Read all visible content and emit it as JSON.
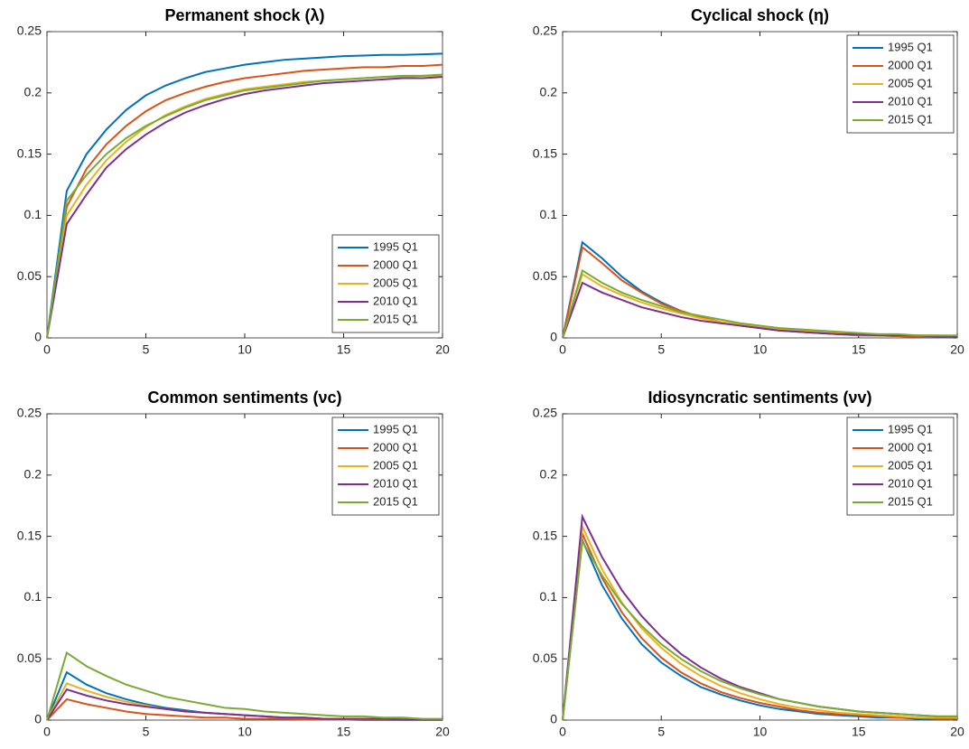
{
  "chart_data": [
    {
      "type": "line",
      "title": "Permanent shock (λ)",
      "x": [
        0,
        1,
        2,
        3,
        4,
        5,
        6,
        7,
        8,
        9,
        10,
        11,
        12,
        13,
        14,
        15,
        16,
        17,
        18,
        19,
        20
      ],
      "xlim": [
        0,
        20
      ],
      "xticks": [
        0,
        5,
        10,
        15,
        20
      ],
      "ylim": [
        0,
        0.25
      ],
      "yticks": [
        0,
        0.05,
        0.1,
        0.15,
        0.2,
        0.25
      ],
      "legend": "lower right",
      "series": [
        {
          "name": "1995 Q1",
          "color": "#0072BD",
          "values": [
            0,
            0.12,
            0.15,
            0.17,
            0.186,
            0.198,
            0.206,
            0.212,
            0.217,
            0.22,
            0.223,
            0.225,
            0.227,
            0.228,
            0.229,
            0.23,
            0.2305,
            0.231,
            0.231,
            0.2315,
            0.232
          ]
        },
        {
          "name": "2000 Q1",
          "color": "#D95319",
          "values": [
            0,
            0.107,
            0.138,
            0.158,
            0.173,
            0.185,
            0.194,
            0.2,
            0.205,
            0.209,
            0.212,
            0.214,
            0.216,
            0.218,
            0.219,
            0.22,
            0.221,
            0.221,
            0.222,
            0.222,
            0.223
          ]
        },
        {
          "name": "2005 Q1",
          "color": "#EDB120",
          "values": [
            0,
            0.1,
            0.125,
            0.145,
            0.16,
            0.172,
            0.182,
            0.189,
            0.195,
            0.199,
            0.203,
            0.205,
            0.207,
            0.209,
            0.21,
            0.211,
            0.212,
            0.213,
            0.213,
            0.214,
            0.214
          ]
        },
        {
          "name": "2010 Q1",
          "color": "#7E2F8E",
          "values": [
            0,
            0.093,
            0.117,
            0.139,
            0.154,
            0.166,
            0.176,
            0.184,
            0.19,
            0.195,
            0.199,
            0.202,
            0.204,
            0.206,
            0.208,
            0.209,
            0.21,
            0.211,
            0.212,
            0.212,
            0.213
          ]
        },
        {
          "name": "2015 Q1",
          "color": "#77AC30",
          "values": [
            0,
            0.112,
            0.133,
            0.15,
            0.163,
            0.173,
            0.181,
            0.188,
            0.194,
            0.198,
            0.202,
            0.204,
            0.206,
            0.208,
            0.21,
            0.211,
            0.212,
            0.213,
            0.214,
            0.214,
            0.215
          ]
        }
      ]
    },
    {
      "type": "line",
      "title": "Cyclical shock (η)",
      "x": [
        0,
        1,
        2,
        3,
        4,
        5,
        6,
        7,
        8,
        9,
        10,
        11,
        12,
        13,
        14,
        15,
        16,
        17,
        18,
        19,
        20
      ],
      "xlim": [
        0,
        20
      ],
      "xticks": [
        0,
        5,
        10,
        15,
        20
      ],
      "ylim": [
        0,
        0.25
      ],
      "yticks": [
        0,
        0.05,
        0.1,
        0.15,
        0.2,
        0.25
      ],
      "legend": "upper right",
      "series": [
        {
          "name": "1995 Q1",
          "color": "#0072BD",
          "values": [
            0,
            0.078,
            0.065,
            0.05,
            0.038,
            0.029,
            0.022,
            0.017,
            0.013,
            0.01,
            0.008,
            0.006,
            0.005,
            0.004,
            0.003,
            0.002,
            0.002,
            0.0015,
            0.001,
            0.001,
            0.001
          ]
        },
        {
          "name": "2000 Q1",
          "color": "#D95319",
          "values": [
            0,
            0.074,
            0.061,
            0.047,
            0.037,
            0.028,
            0.022,
            0.017,
            0.013,
            0.01,
            0.008,
            0.006,
            0.005,
            0.004,
            0.003,
            0.002,
            0.002,
            0.0015,
            0.001,
            0.001,
            0.001
          ]
        },
        {
          "name": "2005 Q1",
          "color": "#EDB120",
          "values": [
            0,
            0.052,
            0.042,
            0.035,
            0.029,
            0.024,
            0.02,
            0.016,
            0.013,
            0.011,
            0.009,
            0.007,
            0.006,
            0.005,
            0.004,
            0.003,
            0.003,
            0.002,
            0.002,
            0.002,
            0.001
          ]
        },
        {
          "name": "2010 Q1",
          "color": "#7E2F8E",
          "values": [
            0,
            0.045,
            0.037,
            0.031,
            0.025,
            0.021,
            0.017,
            0.014,
            0.012,
            0.01,
            0.008,
            0.006,
            0.005,
            0.004,
            0.003,
            0.003,
            0.002,
            0.002,
            0.002,
            0.001,
            0.001
          ]
        },
        {
          "name": "2015 Q1",
          "color": "#77AC30",
          "values": [
            0,
            0.055,
            0.045,
            0.037,
            0.031,
            0.026,
            0.021,
            0.018,
            0.015,
            0.012,
            0.01,
            0.008,
            0.007,
            0.006,
            0.005,
            0.004,
            0.003,
            0.003,
            0.002,
            0.002,
            0.002
          ]
        }
      ]
    },
    {
      "type": "line",
      "title": "Common sentiments (νc)",
      "x": [
        0,
        1,
        2,
        3,
        4,
        5,
        6,
        7,
        8,
        9,
        10,
        11,
        12,
        13,
        14,
        15,
        16,
        17,
        18,
        19,
        20
      ],
      "xlim": [
        0,
        20
      ],
      "xticks": [
        0,
        5,
        10,
        15,
        20
      ],
      "ylim": [
        0,
        0.25
      ],
      "yticks": [
        0,
        0.05,
        0.1,
        0.15,
        0.2,
        0.25
      ],
      "legend": "upper right",
      "series": [
        {
          "name": "1995 Q1",
          "color": "#0072BD",
          "values": [
            0,
            0.039,
            0.029,
            0.022,
            0.017,
            0.013,
            0.01,
            0.008,
            0.006,
            0.005,
            0.004,
            0.003,
            0.002,
            0.002,
            0.001,
            0.001,
            0.001,
            0.001,
            0.0005,
            0.0005,
            0.0005
          ]
        },
        {
          "name": "2000 Q1",
          "color": "#D95319",
          "values": [
            0,
            0.017,
            0.013,
            0.01,
            0.007,
            0.005,
            0.004,
            0.003,
            0.002,
            0.002,
            0.001,
            0.001,
            0.001,
            0.0005,
            0.0005,
            0.0005,
            0,
            0,
            0,
            0,
            0
          ]
        },
        {
          "name": "2005 Q1",
          "color": "#EDB120",
          "values": [
            0,
            0.03,
            0.024,
            0.019,
            0.015,
            0.012,
            0.009,
            0.007,
            0.006,
            0.005,
            0.004,
            0.003,
            0.002,
            0.002,
            0.001,
            0.001,
            0.001,
            0.001,
            0.0005,
            0.0005,
            0.0005
          ]
        },
        {
          "name": "2010 Q1",
          "color": "#7E2F8E",
          "values": [
            0,
            0.025,
            0.02,
            0.016,
            0.013,
            0.011,
            0.009,
            0.007,
            0.006,
            0.005,
            0.004,
            0.003,
            0.002,
            0.002,
            0.001,
            0.001,
            0.001,
            0.001,
            0.0005,
            0.0005,
            0.0005
          ]
        },
        {
          "name": "2015 Q1",
          "color": "#77AC30",
          "values": [
            0,
            0.055,
            0.044,
            0.036,
            0.029,
            0.024,
            0.019,
            0.016,
            0.013,
            0.01,
            0.009,
            0.007,
            0.006,
            0.005,
            0.004,
            0.003,
            0.003,
            0.002,
            0.002,
            0.001,
            0.001
          ]
        }
      ]
    },
    {
      "type": "line",
      "title": "Idiosyncratic sentiments (νv)",
      "x": [
        0,
        1,
        2,
        3,
        4,
        5,
        6,
        7,
        8,
        9,
        10,
        11,
        12,
        13,
        14,
        15,
        16,
        17,
        18,
        19,
        20
      ],
      "xlim": [
        0,
        20
      ],
      "xticks": [
        0,
        5,
        10,
        15,
        20
      ],
      "ylim": [
        0,
        0.25
      ],
      "yticks": [
        0,
        0.05,
        0.1,
        0.15,
        0.2,
        0.25
      ],
      "legend": "upper right",
      "series": [
        {
          "name": "1995 Q1",
          "color": "#0072BD",
          "values": [
            0,
            0.147,
            0.11,
            0.083,
            0.062,
            0.047,
            0.036,
            0.027,
            0.021,
            0.016,
            0.012,
            0.009,
            0.007,
            0.005,
            0.004,
            0.003,
            0.002,
            0.002,
            0.001,
            0.001,
            0.001
          ]
        },
        {
          "name": "2000 Q1",
          "color": "#D95319",
          "values": [
            0,
            0.152,
            0.116,
            0.088,
            0.067,
            0.051,
            0.039,
            0.03,
            0.023,
            0.018,
            0.014,
            0.011,
            0.008,
            0.006,
            0.005,
            0.004,
            0.003,
            0.002,
            0.002,
            0.001,
            0.001
          ]
        },
        {
          "name": "2005 Q1",
          "color": "#EDB120",
          "values": [
            0,
            0.158,
            0.123,
            0.096,
            0.075,
            0.059,
            0.046,
            0.036,
            0.028,
            0.022,
            0.017,
            0.013,
            0.01,
            0.008,
            0.006,
            0.005,
            0.004,
            0.003,
            0.002,
            0.002,
            0.002
          ]
        },
        {
          "name": "2010 Q1",
          "color": "#7E2F8E",
          "values": [
            0,
            0.166,
            0.133,
            0.106,
            0.085,
            0.068,
            0.054,
            0.043,
            0.034,
            0.027,
            0.022,
            0.017,
            0.014,
            0.011,
            0.009,
            0.007,
            0.006,
            0.005,
            0.004,
            0.003,
            0.003
          ]
        },
        {
          "name": "2015 Q1",
          "color": "#77AC30",
          "values": [
            0,
            0.146,
            0.118,
            0.095,
            0.077,
            0.062,
            0.05,
            0.04,
            0.032,
            0.026,
            0.021,
            0.017,
            0.014,
            0.011,
            0.009,
            0.007,
            0.006,
            0.005,
            0.004,
            0.003,
            0.003
          ]
        }
      ]
    }
  ]
}
